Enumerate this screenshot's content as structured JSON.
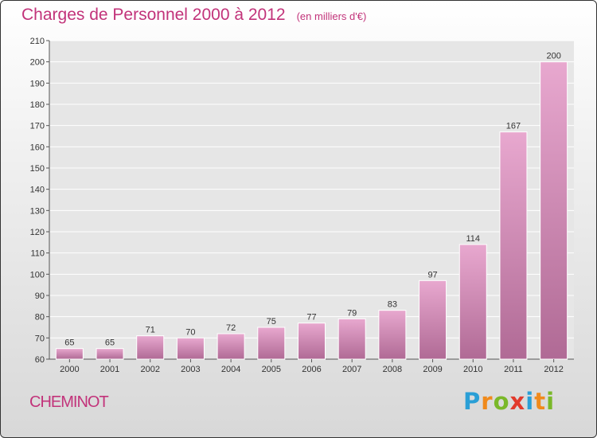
{
  "header": {
    "title": "Charges de Personnel 2000 à 2012",
    "subtitle": "(en milliers d'€)"
  },
  "commune": "CHEMINOT",
  "logo": {
    "letters": [
      "P",
      "r",
      "o",
      "x",
      "i",
      "t",
      "i"
    ],
    "colors": [
      "#2a9fd6",
      "#f08a1c",
      "#7ab829",
      "#e23a2c",
      "#2a9fd6",
      "#f08a1c",
      "#7ab829"
    ]
  },
  "colors": {
    "bar_light": "#e8a8cf",
    "bar_dark": "#b06a95",
    "title": "#c2337a"
  },
  "chart_data": {
    "type": "bar",
    "categories": [
      "2000",
      "2001",
      "2002",
      "2003",
      "2004",
      "2005",
      "2006",
      "2007",
      "2008",
      "2009",
      "2010",
      "2011",
      "2012"
    ],
    "values": [
      65,
      65,
      71,
      70,
      72,
      75,
      77,
      79,
      83,
      97,
      114,
      167,
      200
    ],
    "ylim": [
      60,
      210
    ],
    "yticks": [
      60,
      70,
      80,
      90,
      100,
      110,
      120,
      130,
      140,
      150,
      160,
      170,
      180,
      190,
      200,
      210
    ],
    "grid": true
  }
}
